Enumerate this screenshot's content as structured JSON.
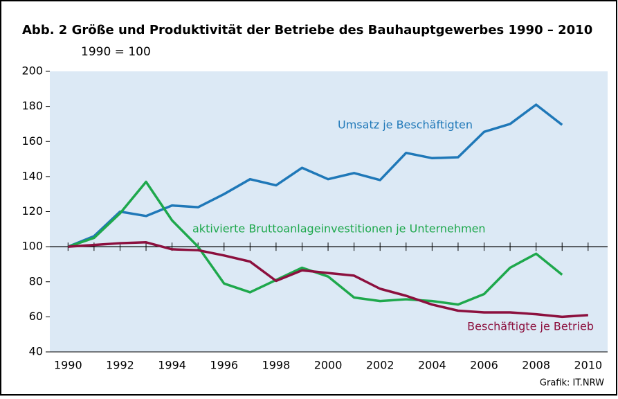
{
  "chart_data": {
    "type": "line",
    "title": "Abb. 2   Größe und Produktivität der Betriebe des Bauhauptgewerbes 1990 – 2010",
    "subtitle": "1990 = 100",
    "source": "Grafik: IT.NRW",
    "x": [
      1990,
      1991,
      1992,
      1993,
      1994,
      1995,
      1996,
      1997,
      1998,
      1999,
      2000,
      2001,
      2002,
      2003,
      2004,
      2005,
      2006,
      2007,
      2008,
      2009,
      2010
    ],
    "series": [
      {
        "name": "Umsatz je Beschäftigten",
        "color": "#1f78b8",
        "values": [
          100,
          106,
          120,
          117.5,
          123.5,
          122.5,
          130,
          138.5,
          135,
          145,
          138.5,
          142,
          138,
          153.5,
          150.5,
          151,
          165.5,
          170,
          181,
          169.5,
          null
        ]
      },
      {
        "name": "aktivierte Bruttoanlageinvestitionen je Unternehmen",
        "color": "#1ea84c",
        "values": [
          100,
          105,
          119,
          137,
          115,
          100,
          79,
          74,
          81,
          88,
          83,
          71,
          69,
          70,
          69,
          67,
          73,
          88,
          96,
          84,
          null
        ]
      },
      {
        "name": "Beschäftigte je Betrieb",
        "color": "#8c103e",
        "values": [
          100,
          101,
          102,
          102.5,
          98.5,
          98,
          95,
          91.5,
          80.5,
          86.5,
          85,
          83.5,
          76,
          72,
          67,
          63.5,
          62.5,
          62.5,
          61.5,
          60,
          61
        ]
      }
    ],
    "xlim": [
      1989.3,
      2010.75
    ],
    "xticks": [
      1990,
      1992,
      1994,
      1996,
      1998,
      2000,
      2002,
      2004,
      2006,
      2008,
      2010
    ],
    "ylim": [
      40,
      200
    ],
    "yticks": [
      40,
      60,
      80,
      100,
      120,
      140,
      160,
      180,
      200
    ],
    "background": "#dce9f5"
  }
}
